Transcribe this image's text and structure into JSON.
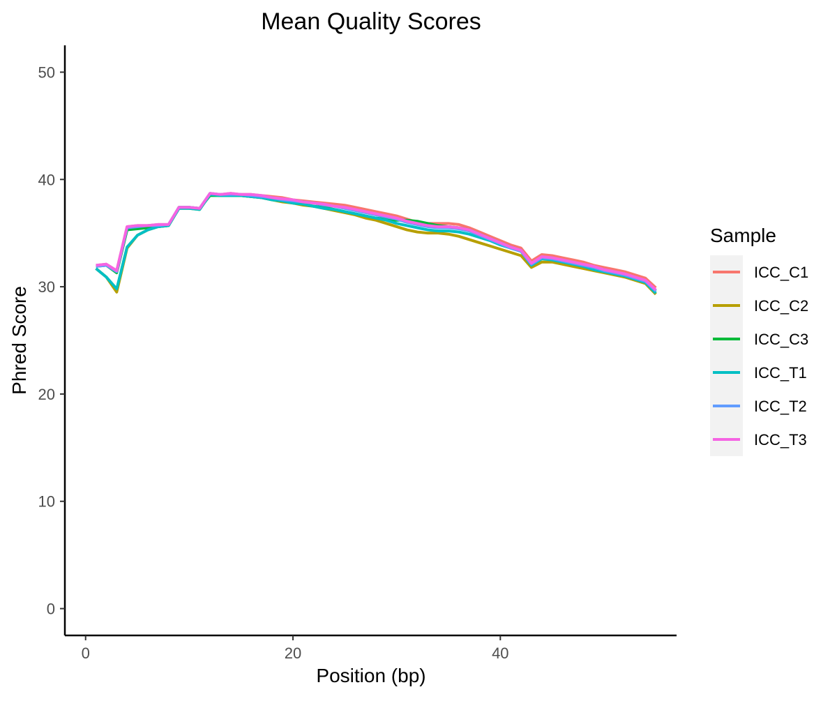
{
  "chart_data": {
    "type": "line",
    "title": "Mean Quality Scores",
    "xlabel": "Position (bp)",
    "ylabel": "Phred Score",
    "xlim": [
      -2,
      57
    ],
    "ylim": [
      -2.5,
      52.5
    ],
    "xticks": [
      0,
      20,
      40
    ],
    "yticks": [
      0,
      10,
      20,
      30,
      40,
      50
    ],
    "grid": false,
    "legend_position": "right",
    "legend_title": "Sample",
    "x": [
      1,
      2,
      3,
      4,
      5,
      6,
      7,
      8,
      9,
      10,
      11,
      12,
      13,
      14,
      15,
      16,
      17,
      18,
      19,
      20,
      21,
      22,
      23,
      24,
      25,
      26,
      27,
      28,
      29,
      30,
      31,
      32,
      33,
      34,
      35,
      36,
      37,
      38,
      39,
      40,
      41,
      42,
      43,
      44,
      45,
      46,
      47,
      48,
      49,
      50,
      51,
      52,
      53,
      54,
      55
    ],
    "series": [
      {
        "name": "ICC_C1",
        "color": "#F8766D",
        "values": [
          32.0,
          32.1,
          31.5,
          35.6,
          35.7,
          35.7,
          35.8,
          35.8,
          37.4,
          37.4,
          37.3,
          38.7,
          38.6,
          38.7,
          38.6,
          38.6,
          38.5,
          38.4,
          38.3,
          38.1,
          38.0,
          37.9,
          37.8,
          37.7,
          37.6,
          37.4,
          37.2,
          37.0,
          36.8,
          36.6,
          36.3,
          36.0,
          35.9,
          35.9,
          35.9,
          35.8,
          35.5,
          35.1,
          34.7,
          34.3,
          33.9,
          33.6,
          32.4,
          33.0,
          32.9,
          32.7,
          32.5,
          32.3,
          32.0,
          31.8,
          31.6,
          31.4,
          31.1,
          30.8,
          29.9
        ]
      },
      {
        "name": "ICC_C2",
        "color": "#B79F00",
        "values": [
          31.7,
          30.9,
          29.5,
          33.6,
          34.8,
          35.3,
          35.6,
          35.7,
          37.3,
          37.3,
          37.2,
          38.6,
          38.5,
          38.5,
          38.5,
          38.4,
          38.3,
          38.1,
          37.9,
          37.8,
          37.6,
          37.5,
          37.3,
          37.1,
          36.9,
          36.7,
          36.4,
          36.2,
          35.9,
          35.6,
          35.3,
          35.1,
          35.0,
          35.0,
          34.9,
          34.7,
          34.4,
          34.1,
          33.8,
          33.5,
          33.2,
          32.9,
          31.8,
          32.3,
          32.3,
          32.1,
          31.9,
          31.7,
          31.5,
          31.3,
          31.1,
          30.9,
          30.6,
          30.3,
          29.3
        ]
      },
      {
        "name": "ICC_C3",
        "color": "#00BA38",
        "values": [
          31.9,
          32.0,
          31.3,
          35.3,
          35.4,
          35.5,
          35.6,
          35.7,
          37.4,
          37.4,
          37.3,
          38.5,
          38.5,
          38.5,
          38.5,
          38.4,
          38.3,
          38.1,
          38.0,
          37.8,
          37.7,
          37.5,
          37.4,
          37.2,
          37.0,
          36.8,
          36.6,
          36.4,
          36.3,
          36.2,
          36.2,
          36.1,
          35.9,
          35.7,
          35.6,
          35.5,
          35.3,
          34.9,
          34.5,
          34.1,
          33.7,
          33.4,
          32.1,
          32.7,
          32.6,
          32.4,
          32.2,
          32.0,
          31.8,
          31.6,
          31.3,
          31.1,
          30.8,
          30.5,
          29.6
        ]
      },
      {
        "name": "ICC_T1",
        "color": "#00BFC4",
        "values": [
          31.7,
          30.9,
          29.8,
          33.7,
          34.8,
          35.3,
          35.6,
          35.7,
          37.3,
          37.3,
          37.2,
          38.6,
          38.5,
          38.5,
          38.5,
          38.4,
          38.3,
          38.1,
          38.0,
          37.8,
          37.7,
          37.5,
          37.3,
          37.2,
          37.0,
          36.8,
          36.6,
          36.4,
          36.2,
          35.9,
          35.7,
          35.5,
          35.3,
          35.2,
          35.2,
          35.1,
          34.9,
          34.6,
          34.3,
          33.9,
          33.6,
          33.3,
          32.0,
          32.6,
          32.5,
          32.3,
          32.1,
          31.9,
          31.6,
          31.4,
          31.2,
          31.0,
          30.7,
          30.4,
          29.4
        ]
      },
      {
        "name": "ICC_T2",
        "color": "#619CFF",
        "values": [
          31.9,
          32.0,
          31.4,
          35.5,
          35.6,
          35.7,
          35.7,
          35.8,
          37.4,
          37.4,
          37.3,
          38.7,
          38.6,
          38.6,
          38.6,
          38.5,
          38.4,
          38.3,
          38.1,
          38.0,
          37.9,
          37.8,
          37.6,
          37.5,
          37.3,
          37.1,
          36.9,
          36.7,
          36.5,
          36.3,
          36.0,
          35.8,
          35.6,
          35.5,
          35.5,
          35.4,
          35.2,
          34.8,
          34.4,
          34.0,
          33.6,
          33.3,
          32.1,
          32.7,
          32.6,
          32.4,
          32.2,
          32.0,
          31.8,
          31.5,
          31.3,
          31.1,
          30.8,
          30.5,
          29.6
        ]
      },
      {
        "name": "ICC_T3",
        "color": "#F564E3",
        "values": [
          32.0,
          32.1,
          31.5,
          35.6,
          35.7,
          35.7,
          35.8,
          35.8,
          37.4,
          37.4,
          37.3,
          38.7,
          38.6,
          38.7,
          38.6,
          38.6,
          38.5,
          38.3,
          38.2,
          38.1,
          37.9,
          37.8,
          37.7,
          37.5,
          37.4,
          37.2,
          37.0,
          36.8,
          36.6,
          36.4,
          36.1,
          35.9,
          35.7,
          35.6,
          35.6,
          35.5,
          35.3,
          34.9,
          34.5,
          34.1,
          33.7,
          33.4,
          32.2,
          32.8,
          32.7,
          32.5,
          32.3,
          32.1,
          31.9,
          31.6,
          31.4,
          31.2,
          30.9,
          30.6,
          29.7
        ]
      }
    ]
  }
}
